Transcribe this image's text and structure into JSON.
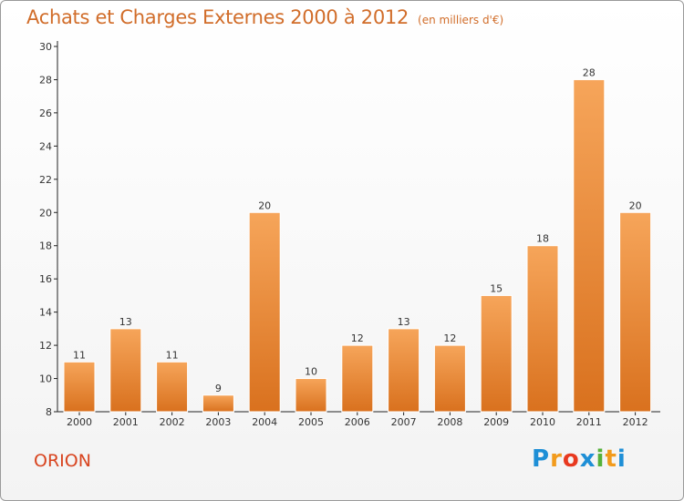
{
  "title": "Achats et Charges Externes 2000 à 2012",
  "unit": "(en milliers d'€)",
  "commune": "ORION",
  "logo": {
    "letters": [
      "P",
      "r",
      "o",
      "x",
      "i",
      "t",
      "i"
    ],
    "colors": [
      "#1e8fd6",
      "#f29b1c",
      "#e8391f",
      "#1e8fd6",
      "#56b13a",
      "#f29b1c",
      "#1e8fd6"
    ]
  },
  "colors": {
    "title": "#d16d2a",
    "bar_light": "#f6a55a",
    "bar_dark": "#d9711e",
    "commune": "#d8441f"
  },
  "chart_data": {
    "type": "bar",
    "categories": [
      "2000",
      "2001",
      "2002",
      "2003",
      "2004",
      "2005",
      "2006",
      "2007",
      "2008",
      "2009",
      "2010",
      "2011",
      "2012"
    ],
    "values": [
      11,
      13,
      11,
      9,
      20,
      10,
      12,
      13,
      12,
      15,
      18,
      28,
      20
    ],
    "value_labels": [
      "11",
      "13",
      "11",
      "9",
      "20",
      "10",
      "12",
      "13",
      "12",
      "15",
      "18",
      "28",
      "20"
    ],
    "ylim": [
      8,
      30
    ],
    "yticks": [
      "8",
      "10",
      "12",
      "14",
      "16",
      "18",
      "20",
      "22",
      "24",
      "26",
      "28",
      "30"
    ],
    "xlabel": "",
    "ylabel": "",
    "grid": false,
    "legend": "none"
  }
}
